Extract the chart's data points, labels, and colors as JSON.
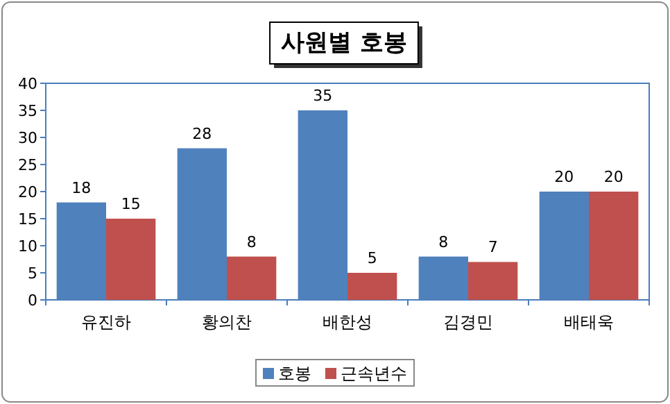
{
  "chart_data": {
    "type": "bar",
    "title": "사원별 호봉",
    "categories": [
      "유진하",
      "황의찬",
      "배한성",
      "김경민",
      "배태욱"
    ],
    "series": [
      {
        "name": "호봉",
        "color": "#4f81bd",
        "values": [
          18,
          28,
          35,
          8,
          20
        ]
      },
      {
        "name": "근속년수",
        "color": "#c0504d",
        "values": [
          15,
          8,
          5,
          7,
          20
        ]
      }
    ],
    "ylim": [
      0,
      40
    ],
    "yticks": [
      0,
      5,
      10,
      15,
      20,
      25,
      30,
      35,
      40
    ],
    "grid": false,
    "legend": "bottom",
    "data_labels": true
  }
}
